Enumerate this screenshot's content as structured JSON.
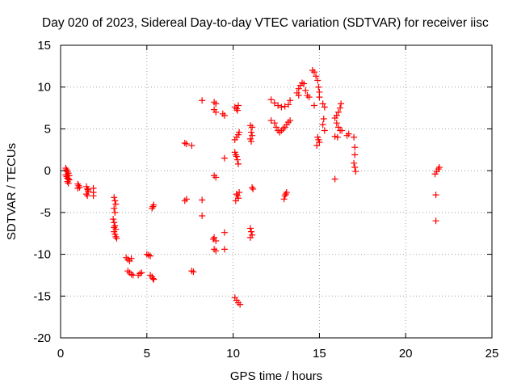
{
  "chart_data": {
    "type": "scatter",
    "title": "Day 020 of 2023, Sidereal Day-to-day VTEC variation (SDTVAR) for receiver iisc",
    "xlabel": "GPS time / hours",
    "ylabel": "SDTVAR / TECUs",
    "xlim": [
      0,
      25
    ],
    "ylim": [
      -20,
      15
    ],
    "xticks": [
      0,
      5,
      10,
      15,
      20,
      25
    ],
    "yticks": [
      -20,
      -15,
      -10,
      -5,
      0,
      5,
      10,
      15
    ],
    "grid": true,
    "marker": "+",
    "color": "#ff0000",
    "series": [
      {
        "name": "SDTVAR",
        "points": [
          [
            0.3,
            0.3
          ],
          [
            0.35,
            0.1
          ],
          [
            0.4,
            -0.1
          ],
          [
            0.45,
            -0.3
          ],
          [
            0.3,
            -0.5
          ],
          [
            0.35,
            -0.7
          ],
          [
            0.4,
            -0.9
          ],
          [
            0.45,
            -1.0
          ],
          [
            0.5,
            -1.1
          ],
          [
            0.4,
            -1.3
          ],
          [
            0.45,
            -1.5
          ],
          [
            0.5,
            -0.6
          ],
          [
            1.0,
            -1.6
          ],
          [
            1.05,
            -1.8
          ],
          [
            1.1,
            -2.0
          ],
          [
            1.0,
            -2.1
          ],
          [
            1.5,
            -1.9
          ],
          [
            1.55,
            -2.2
          ],
          [
            1.6,
            -2.5
          ],
          [
            1.5,
            -2.8
          ],
          [
            1.55,
            -3.0
          ],
          [
            1.6,
            -2.3
          ],
          [
            1.9,
            -2.1
          ],
          [
            1.9,
            -2.6
          ],
          [
            1.9,
            -3.0
          ],
          [
            3.1,
            -3.2
          ],
          [
            3.15,
            -3.6
          ],
          [
            3.2,
            -4.0
          ],
          [
            3.1,
            -4.5
          ],
          [
            3.15,
            -5.0
          ],
          [
            3.05,
            -5.8
          ],
          [
            3.1,
            -6.2
          ],
          [
            3.15,
            -6.6
          ],
          [
            3.2,
            -7.0
          ],
          [
            3.1,
            -7.3
          ],
          [
            3.15,
            -7.6
          ],
          [
            3.2,
            -7.9
          ],
          [
            3.25,
            -8.1
          ],
          [
            3.1,
            -6.8
          ],
          [
            3.8,
            -10.4
          ],
          [
            3.9,
            -10.6
          ],
          [
            4.0,
            -10.8
          ],
          [
            4.1,
            -10.5
          ],
          [
            3.9,
            -12.0
          ],
          [
            4.0,
            -12.2
          ],
          [
            4.1,
            -12.4
          ],
          [
            4.2,
            -12.5
          ],
          [
            4.5,
            -12.5
          ],
          [
            4.6,
            -12.3
          ],
          [
            4.7,
            -12.2
          ],
          [
            5.0,
            -10.0
          ],
          [
            5.1,
            -10.1
          ],
          [
            5.2,
            -10.2
          ],
          [
            5.2,
            -12.5
          ],
          [
            5.3,
            -12.7
          ],
          [
            5.35,
            -12.9
          ],
          [
            5.4,
            -13.0
          ],
          [
            5.3,
            -4.5
          ],
          [
            5.35,
            -4.3
          ],
          [
            5.4,
            -4.1
          ],
          [
            7.2,
            3.3
          ],
          [
            7.3,
            3.2
          ],
          [
            7.6,
            3.0
          ],
          [
            7.2,
            -3.6
          ],
          [
            7.3,
            -3.4
          ],
          [
            7.6,
            -12.0
          ],
          [
            7.7,
            -12.1
          ],
          [
            8.2,
            8.4
          ],
          [
            8.2,
            -3.5
          ],
          [
            8.2,
            -5.4
          ],
          [
            8.9,
            8.2
          ],
          [
            9.0,
            8.0
          ],
          [
            8.9,
            7.3
          ],
          [
            9.0,
            7.0
          ],
          [
            9.4,
            6.8
          ],
          [
            9.5,
            6.6
          ],
          [
            8.9,
            -0.6
          ],
          [
            9.0,
            -0.8
          ],
          [
            8.85,
            -8.2
          ],
          [
            9.0,
            -8.4
          ],
          [
            8.9,
            -8.0
          ],
          [
            8.9,
            -9.4
          ],
          [
            9.0,
            -9.6
          ],
          [
            9.5,
            1.5
          ],
          [
            9.5,
            -7.4
          ],
          [
            9.5,
            -9.4
          ],
          [
            10.1,
            7.6
          ],
          [
            10.2,
            7.4
          ],
          [
            10.3,
            7.8
          ],
          [
            10.25,
            7.2
          ],
          [
            10.1,
            3.7
          ],
          [
            10.2,
            4.0
          ],
          [
            10.3,
            4.3
          ],
          [
            10.35,
            4.6
          ],
          [
            10.1,
            2.2
          ],
          [
            10.2,
            1.7
          ],
          [
            10.25,
            1.3
          ],
          [
            10.3,
            0.8
          ],
          [
            10.15,
            1.9
          ],
          [
            10.2,
            -2.8
          ],
          [
            10.25,
            -3.0
          ],
          [
            10.3,
            -3.3
          ],
          [
            10.15,
            -3.6
          ],
          [
            10.35,
            -2.6
          ],
          [
            10.1,
            -15.2
          ],
          [
            10.2,
            -15.5
          ],
          [
            10.3,
            -15.8
          ],
          [
            10.4,
            -16.0
          ],
          [
            11.0,
            5.4
          ],
          [
            11.1,
            5.2
          ],
          [
            11.05,
            4.6
          ],
          [
            11.1,
            4.2
          ],
          [
            11.0,
            3.8
          ],
          [
            11.05,
            3.5
          ],
          [
            11.1,
            -2.0
          ],
          [
            11.15,
            -2.2
          ],
          [
            11.0,
            -6.9
          ],
          [
            11.05,
            -7.3
          ],
          [
            11.1,
            -7.7
          ],
          [
            11.0,
            -8.0
          ],
          [
            12.2,
            8.5
          ],
          [
            12.4,
            8.1
          ],
          [
            12.6,
            7.8
          ],
          [
            12.8,
            7.6
          ],
          [
            13.0,
            7.7
          ],
          [
            13.2,
            7.9
          ],
          [
            13.3,
            8.4
          ],
          [
            12.2,
            6.0
          ],
          [
            12.4,
            5.7
          ],
          [
            12.5,
            5.2
          ],
          [
            12.6,
            4.8
          ],
          [
            12.7,
            4.6
          ],
          [
            12.8,
            4.8
          ],
          [
            12.9,
            5.0
          ],
          [
            13.0,
            5.2
          ],
          [
            13.1,
            5.5
          ],
          [
            13.2,
            5.8
          ],
          [
            13.3,
            6.0
          ],
          [
            13.1,
            -2.6
          ],
          [
            13.0,
            -3.0
          ],
          [
            12.95,
            -3.4
          ],
          [
            13.05,
            -2.8
          ],
          [
            13.7,
            9.3
          ],
          [
            13.8,
            9.8
          ],
          [
            13.9,
            10.2
          ],
          [
            14.0,
            10.5
          ],
          [
            14.1,
            10.4
          ],
          [
            14.2,
            9.6
          ],
          [
            14.3,
            9.0
          ],
          [
            14.4,
            8.8
          ],
          [
            13.8,
            9.0
          ],
          [
            14.6,
            12.0
          ],
          [
            14.7,
            11.8
          ],
          [
            14.8,
            11.3
          ],
          [
            14.9,
            10.8
          ],
          [
            14.95,
            10.0
          ],
          [
            15.0,
            9.4
          ],
          [
            15.0,
            8.8
          ],
          [
            14.7,
            7.8
          ],
          [
            15.2,
            8.0
          ],
          [
            15.3,
            7.6
          ],
          [
            15.25,
            6.2
          ],
          [
            15.2,
            5.5
          ],
          [
            15.3,
            4.8
          ],
          [
            14.9,
            4.0
          ],
          [
            14.95,
            3.7
          ],
          [
            15.0,
            3.4
          ],
          [
            14.85,
            3.0
          ],
          [
            15.9,
            6.3
          ],
          [
            16.0,
            6.6
          ],
          [
            16.1,
            7.0
          ],
          [
            16.2,
            7.5
          ],
          [
            16.25,
            8.0
          ],
          [
            16.0,
            5.7
          ],
          [
            16.1,
            5.2
          ],
          [
            16.2,
            4.8
          ],
          [
            16.3,
            4.8
          ],
          [
            15.9,
            4.1
          ],
          [
            16.05,
            4.0
          ],
          [
            16.6,
            4.2
          ],
          [
            16.7,
            4.4
          ],
          [
            15.9,
            -1.0
          ],
          [
            17.0,
            4.0
          ],
          [
            17.05,
            2.8
          ],
          [
            17.05,
            1.9
          ],
          [
            17.0,
            0.9
          ],
          [
            17.05,
            0.4
          ],
          [
            17.1,
            -0.1
          ],
          [
            21.7,
            -0.4
          ],
          [
            21.8,
            -0.1
          ],
          [
            21.9,
            0.2
          ],
          [
            21.95,
            0.4
          ],
          [
            21.75,
            -2.9
          ],
          [
            21.75,
            -6.0
          ]
        ]
      }
    ]
  }
}
